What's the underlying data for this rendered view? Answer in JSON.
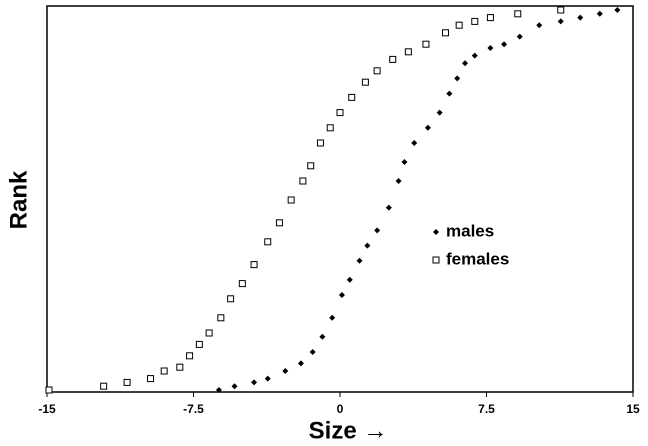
{
  "chart_data": {
    "type": "scatter",
    "xlabel": "Size →",
    "ylabel": "Rank",
    "xlim": [
      -15,
      15
    ],
    "xticks": [
      -15,
      -7.5,
      0,
      7.5,
      15
    ],
    "ylim": [
      0,
      100
    ],
    "series": [
      {
        "name": "males",
        "color": "#000000",
        "marker": "diamond",
        "x": [
          -6.2,
          -5.4,
          -4.4,
          -3.7,
          -2.8,
          -2.0,
          -1.4,
          -0.9,
          -0.4,
          0.1,
          0.5,
          1.0,
          1.4,
          1.9,
          2.5,
          3.0,
          3.3,
          3.8,
          4.5,
          5.1,
          5.6,
          6.0,
          6.4,
          6.9,
          7.7,
          8.4,
          9.2,
          10.2,
          11.3,
          12.3,
          13.3,
          14.2
        ],
        "values": [
          0,
          1,
          2,
          3,
          5,
          7,
          10,
          14,
          19,
          25,
          29,
          34,
          38,
          42,
          48,
          55,
          60,
          65,
          69,
          73,
          78,
          82,
          86,
          88,
          90,
          91,
          93,
          96,
          97,
          98,
          99,
          100
        ]
      },
      {
        "name": "females",
        "color": "#000000",
        "marker": "open-square",
        "x": [
          -14.9,
          -12.1,
          -10.9,
          -9.7,
          -9.0,
          -8.2,
          -7.7,
          -7.2,
          -6.7,
          -6.1,
          -5.6,
          -5.0,
          -4.4,
          -3.7,
          -3.1,
          -2.5,
          -1.9,
          -1.5,
          -1.0,
          -0.5,
          0,
          0.6,
          1.3,
          1.9,
          2.7,
          3.5,
          4.4,
          5.4,
          6.1,
          6.9,
          7.7,
          9.1,
          11.3
        ],
        "values": [
          0,
          1,
          2,
          3,
          5,
          6,
          9,
          12,
          15,
          19,
          24,
          28,
          33,
          39,
          44,
          50,
          55,
          59,
          65,
          69,
          73,
          77,
          81,
          84,
          87,
          89,
          91,
          94,
          96,
          97,
          98,
          99,
          100
        ]
      }
    ]
  }
}
